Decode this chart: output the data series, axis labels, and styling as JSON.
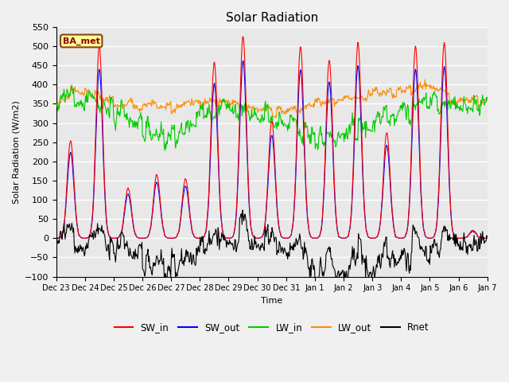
{
  "title": "Solar Radiation",
  "ylabel": "Solar Radiation (W/m2)",
  "xlabel": "Time",
  "annotation": "BA_met",
  "ylim": [
    -100,
    550
  ],
  "yticks": [
    -100,
    -50,
    0,
    50,
    100,
    150,
    200,
    250,
    300,
    350,
    400,
    450,
    500,
    550
  ],
  "series_colors": {
    "SW_in": "#ff0000",
    "SW_out": "#0000ff",
    "LW_in": "#00cc00",
    "LW_out": "#ff8c00",
    "Rnet": "#000000"
  },
  "tick_labels": [
    "Dec 23",
    "Dec 24",
    "Dec 25",
    "Dec 26",
    "Dec 27",
    "Dec 28",
    "Dec 29",
    "Dec 30",
    "Dec 31",
    "Jan 1",
    "Jan 2",
    "Jan 3",
    "Jan 4",
    "Jan 5",
    "Jan 6",
    "Jan 7"
  ],
  "SW_in_peaks": [
    255,
    500,
    130,
    165,
    155,
    460,
    525,
    305,
    500,
    465,
    510,
    275,
    500,
    510,
    20
  ],
  "LW_in_day_patterns": [
    358,
    365,
    330,
    295,
    255,
    315,
    340,
    320,
    300,
    265,
    265,
    300,
    335,
    355,
    350
  ],
  "LW_out_day_patterns": [
    360,
    385,
    355,
    350,
    340,
    360,
    355,
    335,
    330,
    350,
    365,
    375,
    380,
    395,
    360
  ],
  "background_color": "#e8e8e8",
  "grid_color": "#ffffff",
  "fig_bg": "#f0f0f0"
}
